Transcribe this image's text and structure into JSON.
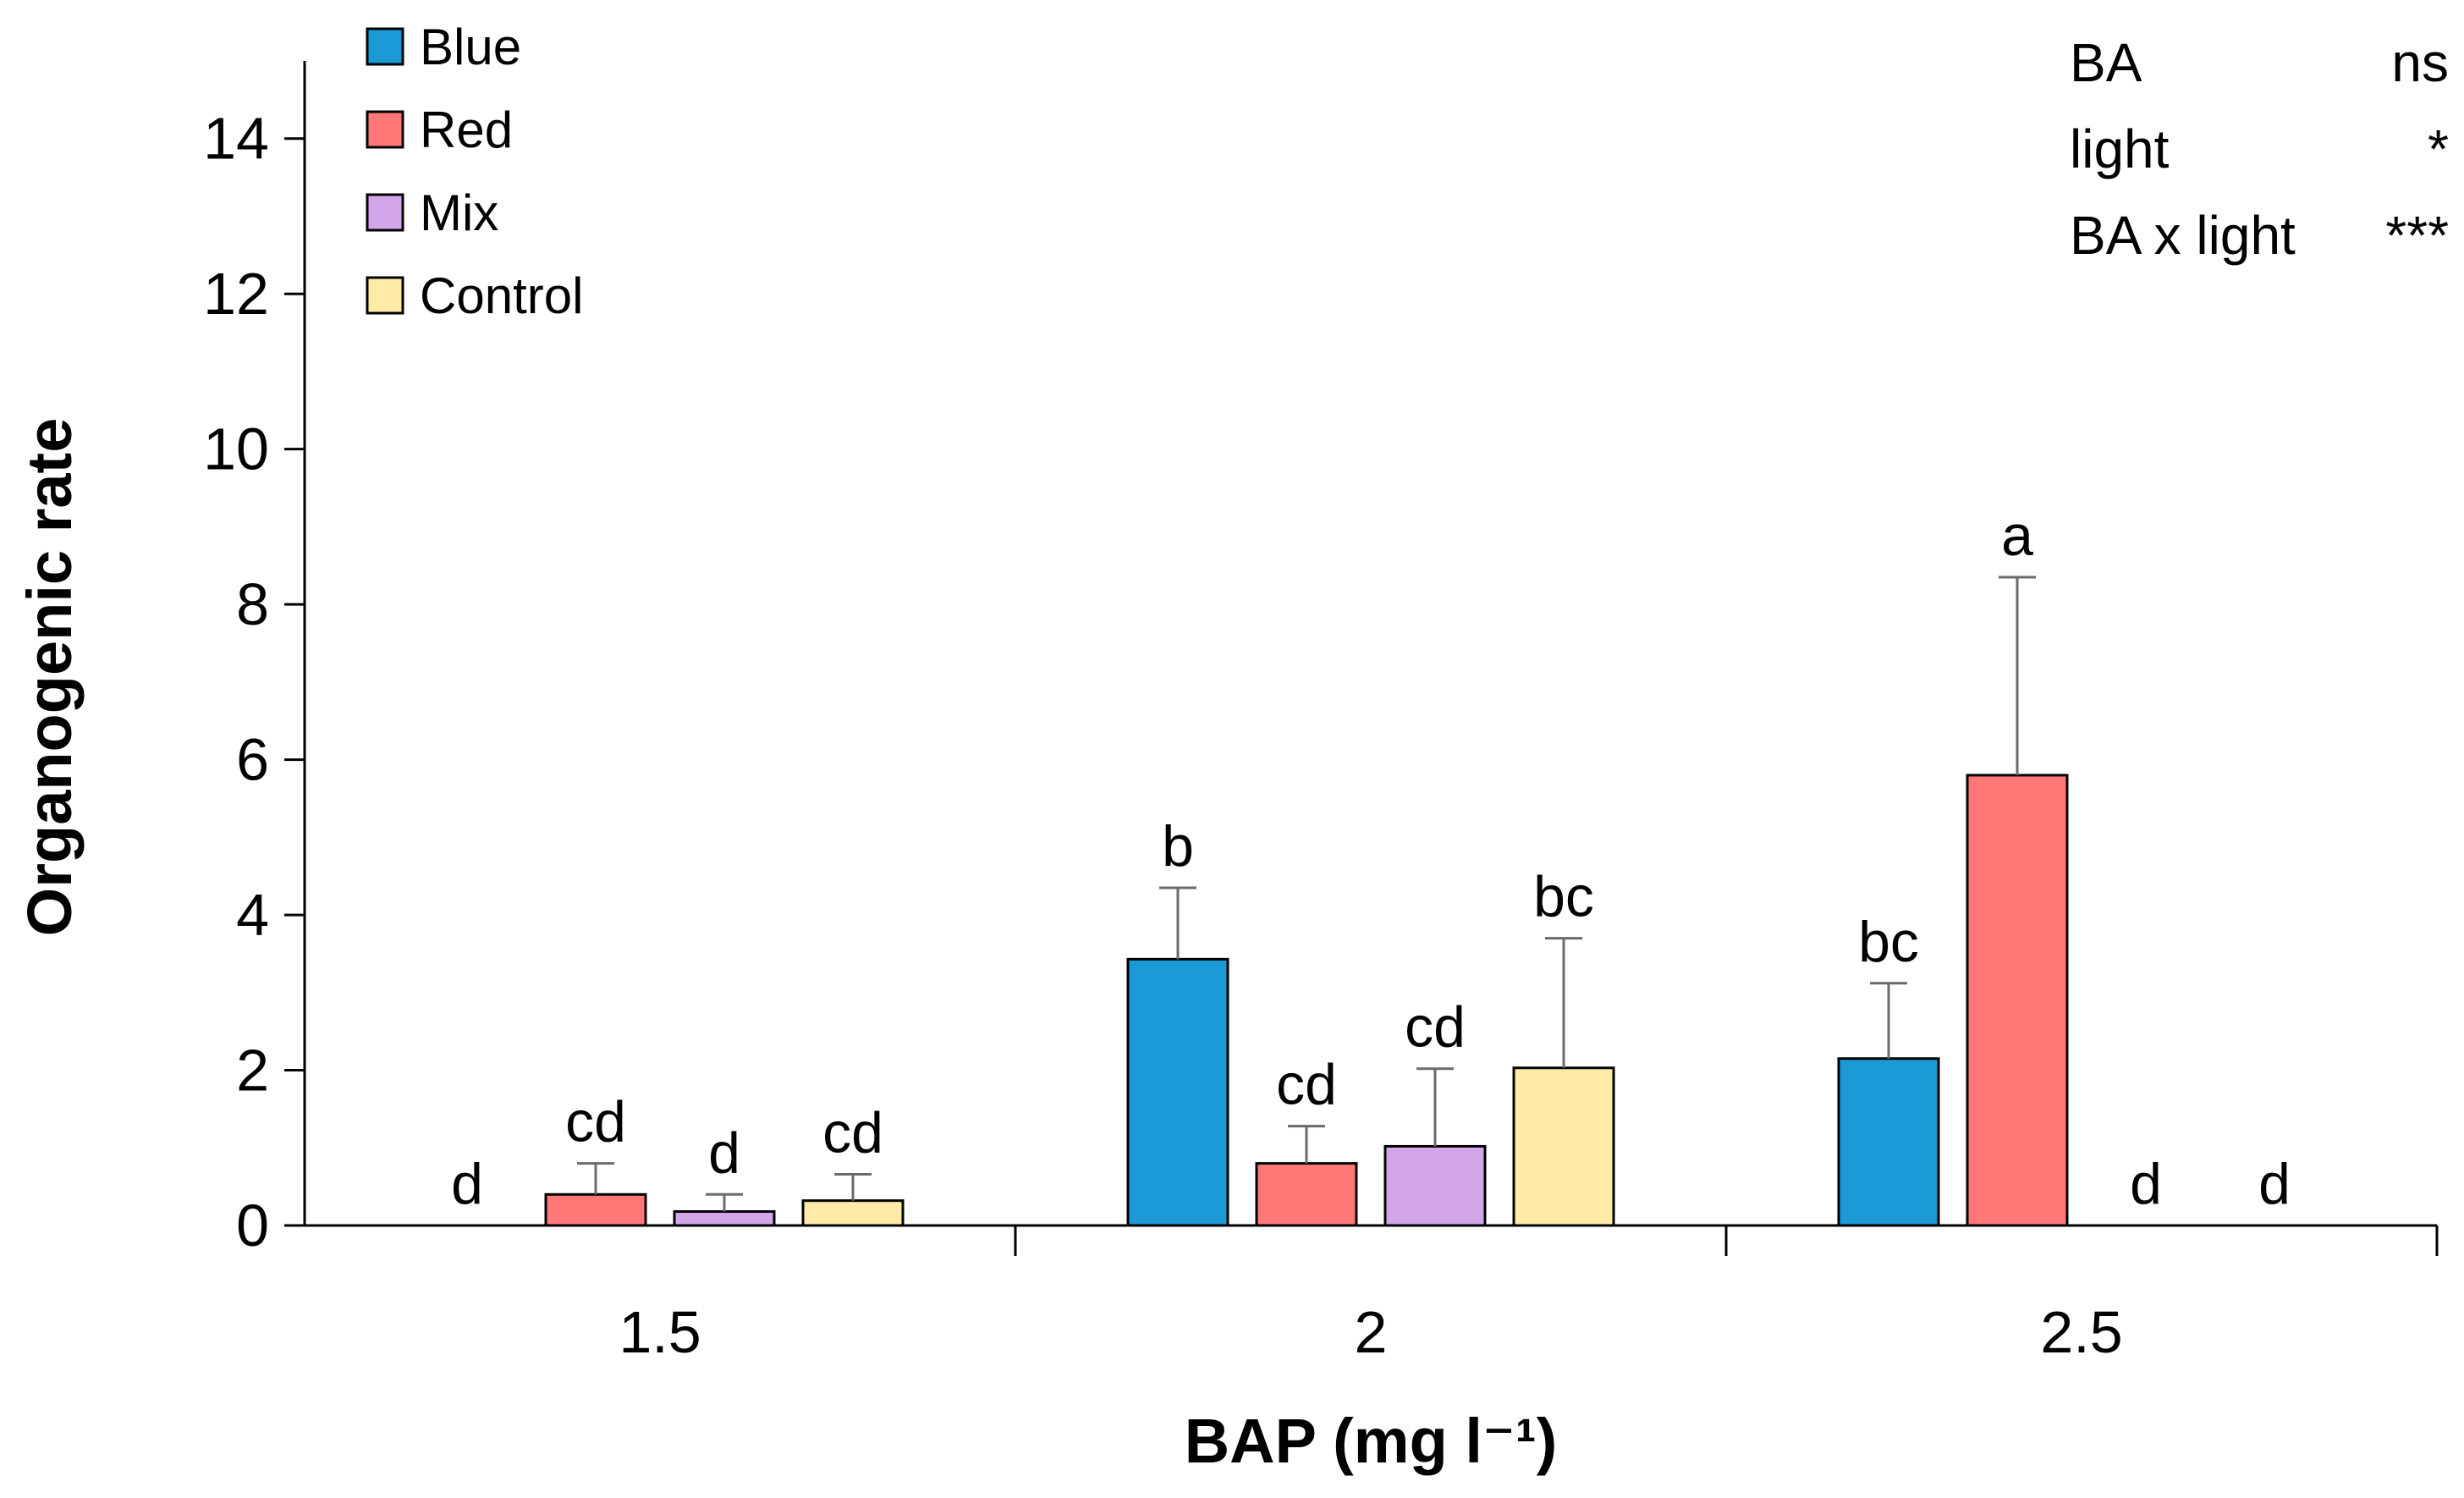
{
  "chart_data": {
    "type": "bar",
    "xlabel": "BAP (mg l⁻¹)",
    "ylabel": "Organogenic rate",
    "ylim": [
      0,
      15
    ],
    "yticks": [
      0,
      2,
      4,
      6,
      8,
      10,
      12,
      14
    ],
    "categories": [
      "1.5",
      "2",
      "2.5"
    ],
    "legend_position": "top-left",
    "series": [
      {
        "name": "Blue",
        "color": "#1b9ad6",
        "values": [
          0,
          3.43,
          2.15
        ],
        "errors": [
          0,
          0.92,
          0.97
        ],
        "letters": [
          "d",
          "b",
          "bc"
        ]
      },
      {
        "name": "Red",
        "color": "#ff7777",
        "values": [
          0.4,
          0.8,
          5.8
        ],
        "errors": [
          0.4,
          0.48,
          2.55
        ],
        "letters": [
          "cd",
          "cd",
          "a"
        ]
      },
      {
        "name": "Mix",
        "color": "#d3a6ea",
        "values": [
          0.18,
          1.02,
          0
        ],
        "errors": [
          0.22,
          1.0,
          0
        ],
        "letters": [
          "d",
          "cd",
          "d"
        ]
      },
      {
        "name": "Control",
        "color": "#ffeba6",
        "values": [
          0.32,
          2.03,
          0
        ],
        "errors": [
          0.34,
          1.67,
          0
        ],
        "letters": [
          "cd",
          "bc",
          "d"
        ]
      }
    ],
    "stats": [
      {
        "label": "BA",
        "value": "ns"
      },
      {
        "label": "light",
        "value": "*"
      },
      {
        "label": "BA x light",
        "value": "***"
      }
    ]
  }
}
